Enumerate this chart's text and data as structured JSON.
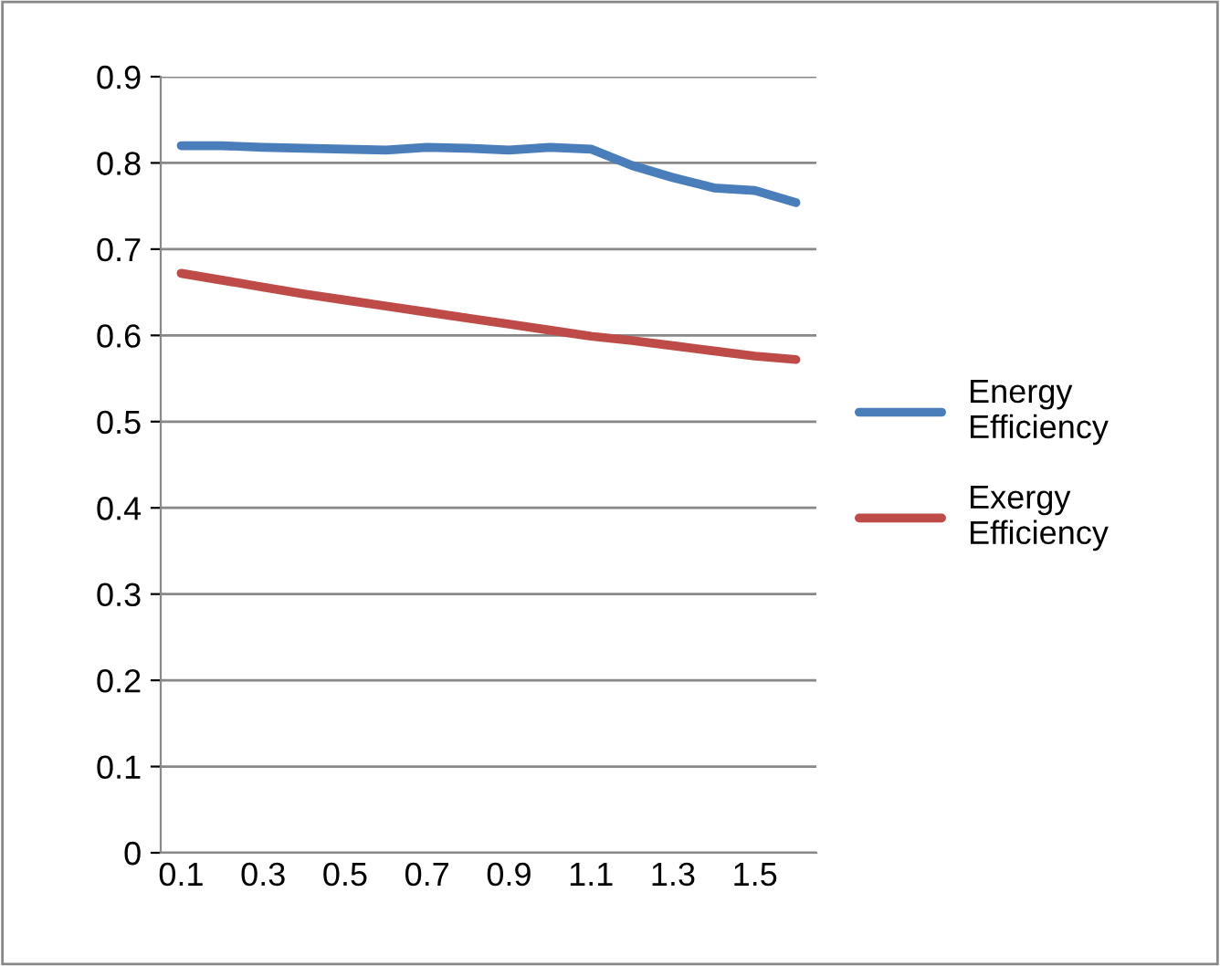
{
  "chart_data": {
    "type": "line",
    "categories": [
      "0.1",
      null,
      "0.3",
      null,
      "0.5",
      null,
      "0.7",
      null,
      "0.9",
      null,
      "1.1",
      null,
      "1.3",
      null,
      "1.5",
      null
    ],
    "series": [
      {
        "name": "Energy Efficiency",
        "color": "#4a7ebb",
        "values": [
          0.82,
          0.82,
          0.818,
          0.817,
          0.816,
          0.815,
          0.818,
          0.817,
          0.815,
          0.818,
          0.816,
          0.797,
          0.783,
          0.771,
          0.768,
          0.754
        ]
      },
      {
        "name": "Exergy Efficiency",
        "color": "#be4b48",
        "values": [
          0.672,
          0.664,
          0.656,
          0.648,
          0.641,
          0.634,
          0.627,
          0.62,
          0.613,
          0.606,
          0.599,
          0.594,
          0.588,
          0.582,
          0.576,
          0.572
        ]
      }
    ],
    "ylim": [
      0,
      0.9
    ],
    "yticks": [
      0,
      0.1,
      0.2,
      0.3,
      0.4,
      0.5,
      0.6,
      0.7,
      0.8,
      0.9
    ],
    "grid": "y",
    "legend": "right",
    "marker": "none",
    "line_style": "solid"
  }
}
